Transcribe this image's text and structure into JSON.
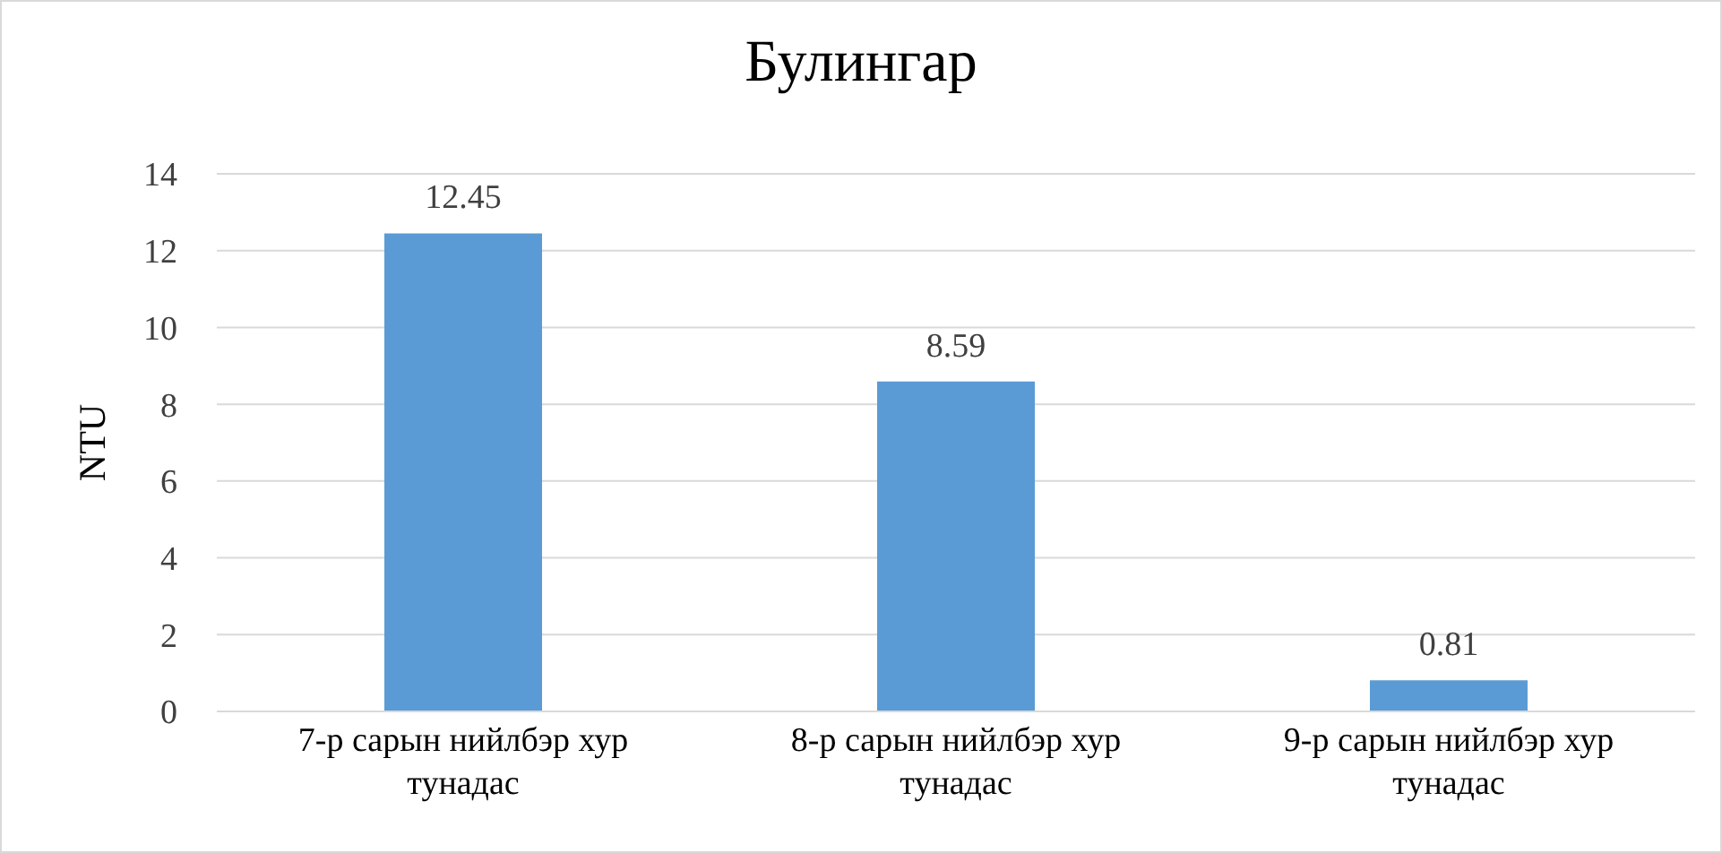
{
  "chart_data": {
    "type": "bar",
    "title": "Булингар",
    "ylabel": "NTU",
    "categories": [
      "7-р сарын нийлбэр хур тунадас",
      "8-р сарын нийлбэр хур тунадас",
      "9-р сарын нийлбэр хур тунадас"
    ],
    "values": [
      12.45,
      8.59,
      0.81
    ],
    "color": "#5b9bd5",
    "ylim": [
      0,
      14
    ],
    "yticks": [
      0,
      2,
      4,
      6,
      8,
      10,
      12,
      14
    ],
    "grid": "y",
    "data_labels": true
  }
}
